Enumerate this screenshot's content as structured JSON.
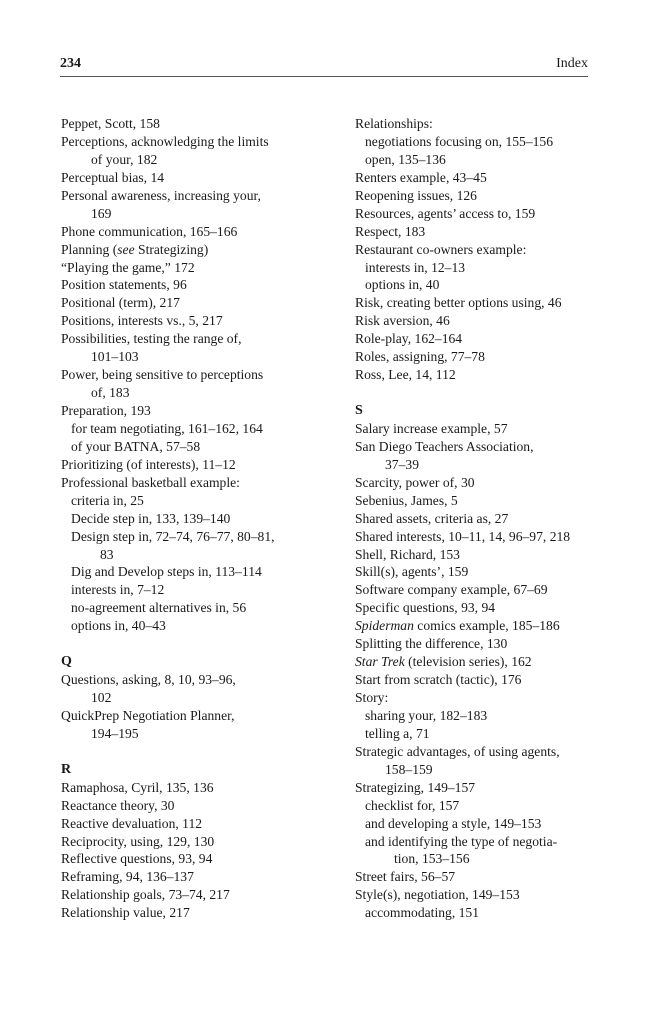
{
  "header": {
    "page_number": "234",
    "running_title": "Index"
  },
  "left": [
    {
      "k": "m",
      "t": "Peppet, Scott, 158"
    },
    {
      "k": "m",
      "t": "Perceptions, acknowledging the limits"
    },
    {
      "k": "c",
      "t": "of your, 182"
    },
    {
      "k": "m",
      "t": "Perceptual bias, 14"
    },
    {
      "k": "m",
      "t": "Personal awareness, increasing your,"
    },
    {
      "k": "c",
      "t": "169"
    },
    {
      "k": "m",
      "t": "Phone communication, 165–166"
    },
    {
      "k": "m",
      "seg": [
        {
          "t": "Planning ("
        },
        {
          "t": "see",
          "i": true
        },
        {
          "t": " Strategizing)"
        }
      ]
    },
    {
      "k": "m",
      "t": "“Playing the game,” 172"
    },
    {
      "k": "m",
      "t": "Position statements, 96"
    },
    {
      "k": "m",
      "t": "Positional (term), 217"
    },
    {
      "k": "m",
      "t": "Positions, interests vs., 5, 217"
    },
    {
      "k": "m",
      "t": "Possibilities, testing the range of,"
    },
    {
      "k": "c",
      "t": "101–103"
    },
    {
      "k": "m",
      "t": "Power, being sensitive to perceptions"
    },
    {
      "k": "c",
      "t": "of, 183"
    },
    {
      "k": "m",
      "t": "Preparation, 193"
    },
    {
      "k": "s",
      "t": "for team negotiating, 161–162, 164"
    },
    {
      "k": "s",
      "t": "of your BATNA, 57–58"
    },
    {
      "k": "m",
      "t": "Prioritizing (of interests), 11–12"
    },
    {
      "k": "m",
      "t": "Professional basketball example:"
    },
    {
      "k": "s",
      "t": "criteria in, 25"
    },
    {
      "k": "s",
      "t": "Decide step in, 133, 139–140"
    },
    {
      "k": "s",
      "t": "Design step in, 72–74, 76–77, 80–81,"
    },
    {
      "k": "sc",
      "t": "83"
    },
    {
      "k": "s",
      "t": "Dig and Develop steps in, 113–114"
    },
    {
      "k": "s",
      "t": "interests in, 7–12"
    },
    {
      "k": "s",
      "t": "no-agreement alternatives in, 56"
    },
    {
      "k": "s",
      "t": "options in, 40–43"
    },
    {
      "k": "g",
      "t": ""
    },
    {
      "k": "h",
      "t": "Q"
    },
    {
      "k": "m",
      "t": "Questions, asking, 8, 10, 93–96,"
    },
    {
      "k": "c",
      "t": "102"
    },
    {
      "k": "m",
      "t": "QuickPrep Negotiation Planner,"
    },
    {
      "k": "c",
      "t": "194–195"
    },
    {
      "k": "g",
      "t": ""
    },
    {
      "k": "h",
      "t": "R"
    },
    {
      "k": "m",
      "t": "Ramaphosa, Cyril, 135, 136"
    },
    {
      "k": "m",
      "t": "Reactance theory, 30"
    },
    {
      "k": "m",
      "t": "Reactive devaluation, 112"
    },
    {
      "k": "m",
      "t": "Reciprocity, using, 129, 130"
    },
    {
      "k": "m",
      "t": "Reflective questions, 93, 94"
    },
    {
      "k": "m",
      "t": "Reframing, 94, 136–137"
    },
    {
      "k": "m",
      "t": "Relationship goals, 73–74, 217"
    },
    {
      "k": "m",
      "t": "Relationship value, 217"
    }
  ],
  "right": [
    {
      "k": "m",
      "t": "Relationships:"
    },
    {
      "k": "s",
      "t": "negotiations focusing on, 155–156"
    },
    {
      "k": "s",
      "t": "open, 135–136"
    },
    {
      "k": "m",
      "t": "Renters example, 43–45"
    },
    {
      "k": "m",
      "t": "Reopening issues, 126"
    },
    {
      "k": "m",
      "t": "Resources, agents’ access to, 159"
    },
    {
      "k": "m",
      "t": "Respect, 183"
    },
    {
      "k": "m",
      "t": "Restaurant co-owners example:"
    },
    {
      "k": "s",
      "t": "interests in, 12–13"
    },
    {
      "k": "s",
      "t": "options in, 40"
    },
    {
      "k": "m",
      "t": "Risk, creating better options using, 46"
    },
    {
      "k": "m",
      "t": "Risk aversion, 46"
    },
    {
      "k": "m",
      "t": "Role-play, 162–164"
    },
    {
      "k": "m",
      "t": "Roles, assigning, 77–78"
    },
    {
      "k": "m",
      "t": "Ross, Lee, 14, 112"
    },
    {
      "k": "g",
      "t": ""
    },
    {
      "k": "h",
      "t": "S"
    },
    {
      "k": "m",
      "t": "Salary increase example, 57"
    },
    {
      "k": "m",
      "t": "San Diego Teachers Association,"
    },
    {
      "k": "c",
      "t": "37–39"
    },
    {
      "k": "m",
      "t": "Scarcity, power of, 30"
    },
    {
      "k": "m",
      "t": "Sebenius, James, 5"
    },
    {
      "k": "m",
      "t": "Shared assets, criteria as, 27"
    },
    {
      "k": "m",
      "t": "Shared interests, 10–11, 14, 96–97, 218"
    },
    {
      "k": "m",
      "t": "Shell, Richard, 153"
    },
    {
      "k": "m",
      "t": "Skill(s), agents’, 159"
    },
    {
      "k": "m",
      "t": "Software company example, 67–69"
    },
    {
      "k": "m",
      "t": "Specific questions, 93, 94"
    },
    {
      "k": "m",
      "seg": [
        {
          "t": "Spiderman",
          "i": true
        },
        {
          "t": " comics example, 185–186"
        }
      ]
    },
    {
      "k": "m",
      "t": "Splitting the difference, 130"
    },
    {
      "k": "m",
      "seg": [
        {
          "t": "Star Trek",
          "i": true
        },
        {
          "t": " (television series), 162"
        }
      ]
    },
    {
      "k": "m",
      "t": "Start from scratch (tactic), 176"
    },
    {
      "k": "m",
      "t": "Story:"
    },
    {
      "k": "s",
      "t": "sharing your, 182–183"
    },
    {
      "k": "s",
      "t": "telling a, 71"
    },
    {
      "k": "m",
      "t": "Strategic advantages, of using agents,"
    },
    {
      "k": "c",
      "t": "158–159"
    },
    {
      "k": "m",
      "t": "Strategizing, 149–157"
    },
    {
      "k": "s",
      "t": "checklist for, 157"
    },
    {
      "k": "s",
      "t": "and developing a style, 149–153"
    },
    {
      "k": "s",
      "t": "and identifying the type of negotia-"
    },
    {
      "k": "sc",
      "t": "tion, 153–156"
    },
    {
      "k": "m",
      "t": "Street fairs, 56–57"
    },
    {
      "k": "m",
      "t": "Style(s), negotiation, 149–153"
    },
    {
      "k": "s",
      "t": "accommodating, 151"
    }
  ]
}
